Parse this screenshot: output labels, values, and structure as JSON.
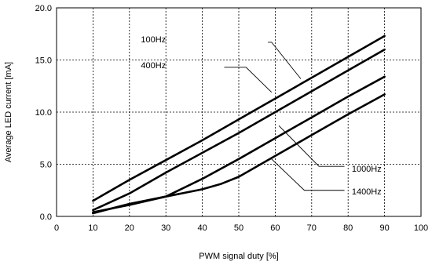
{
  "chart_data": {
    "type": "line",
    "xlabel": "PWM signal duty [%]",
    "ylabel": "Average LED current [mA]",
    "xlim": [
      0,
      100
    ],
    "ylim": [
      0,
      20
    ],
    "xticks": [
      0,
      10,
      20,
      30,
      40,
      50,
      60,
      70,
      80,
      90,
      100
    ],
    "yticks": [
      0.0,
      5.0,
      10.0,
      15.0,
      20.0
    ],
    "xtick_labels": [
      "0",
      "10",
      "20",
      "30",
      "40",
      "50",
      "60",
      "70",
      "80",
      "90",
      "100"
    ],
    "ytick_labels": [
      "0.0",
      "5.0",
      "10.0",
      "15.0",
      "20.0"
    ],
    "grid": true,
    "series": [
      {
        "name": "100Hz",
        "x": [
          10,
          20,
          30,
          40,
          50,
          60,
          70,
          80,
          90
        ],
        "y": [
          1.5,
          3.5,
          5.4,
          7.3,
          9.3,
          11.3,
          13.3,
          15.3,
          17.3
        ]
      },
      {
        "name": "400Hz",
        "x": [
          10,
          20,
          30,
          40,
          50,
          60,
          70,
          80,
          90
        ],
        "y": [
          0.6,
          2.2,
          4.2,
          6.1,
          8.0,
          10.0,
          12.0,
          14.0,
          16.0
        ]
      },
      {
        "name": "1000Hz",
        "x": [
          10,
          20,
          30,
          40,
          50,
          60,
          70,
          80,
          90
        ],
        "y": [
          0.4,
          1.1,
          1.9,
          3.6,
          5.5,
          7.5,
          9.5,
          11.5,
          13.4
        ]
      },
      {
        "name": "1400Hz",
        "x": [
          10,
          20,
          30,
          40,
          45,
          50,
          60,
          70,
          80,
          90
        ],
        "y": [
          0.3,
          1.2,
          1.9,
          2.6,
          3.1,
          3.8,
          5.8,
          7.8,
          9.8,
          11.7
        ]
      }
    ],
    "annotations": [
      {
        "text": "100Hz",
        "label_x": 30,
        "label_y": 17.0,
        "line_start_x": 58,
        "line_start_y": 16.7,
        "elbow_x": 59,
        "elbow_y": 16.7,
        "target_x": 67,
        "target_y": 13.2,
        "anchor": "end"
      },
      {
        "text": "400Hz",
        "label_x": 30,
        "label_y": 14.5,
        "line_start_x": 46,
        "line_start_y": 14.3,
        "elbow_x": 52,
        "elbow_y": 14.3,
        "target_x": 59,
        "target_y": 11.9,
        "anchor": "end"
      },
      {
        "text": "1000Hz",
        "label_x": 81,
        "label_y": 4.6,
        "line_start_x": 79,
        "line_start_y": 4.8,
        "elbow_x": 72,
        "elbow_y": 4.8,
        "target_x": 61,
        "target_y": 8.7,
        "anchor": "start"
      },
      {
        "text": "1400Hz",
        "label_x": 81,
        "label_y": 2.4,
        "line_start_x": 79,
        "line_start_y": 2.5,
        "elbow_x": 68,
        "elbow_y": 2.5,
        "target_x": 59,
        "target_y": 5.5,
        "anchor": "start"
      }
    ]
  }
}
